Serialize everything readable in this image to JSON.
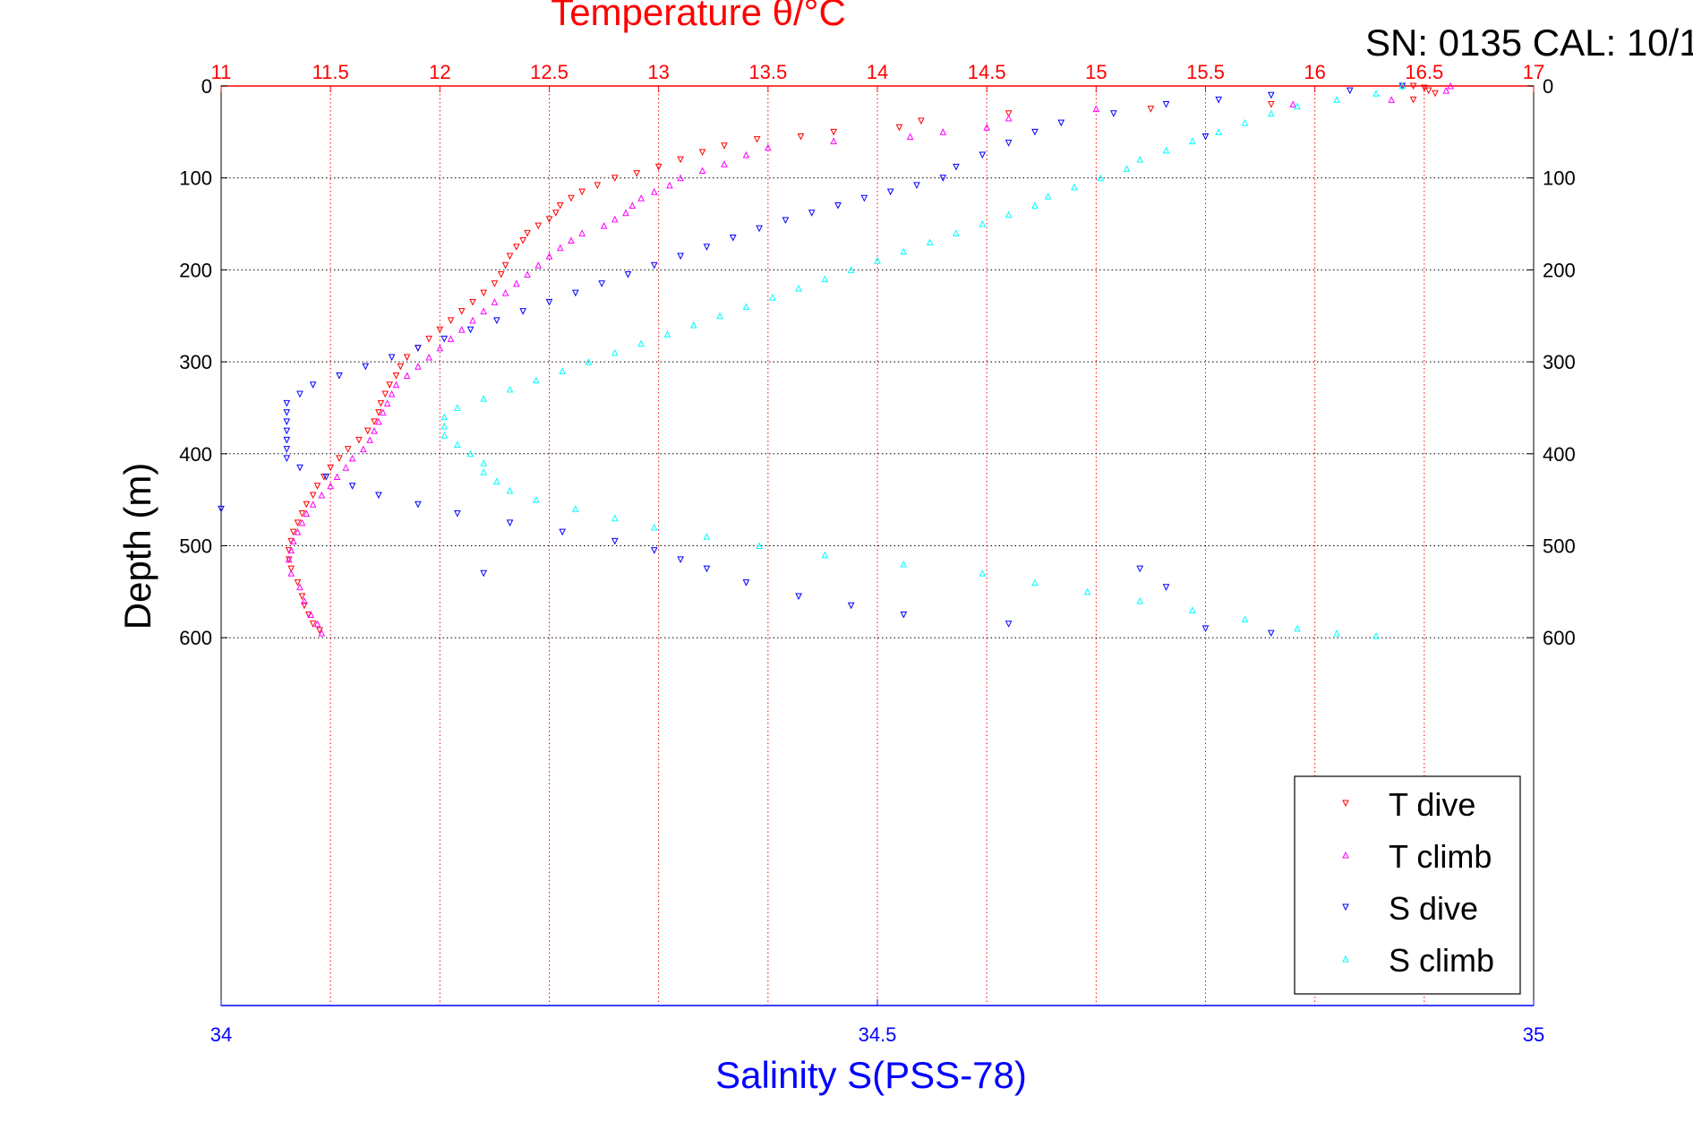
{
  "header": {
    "serial_text": "SN: 0135  CAL: 10/1"
  },
  "chart_data": {
    "type": "scatter",
    "title": "Temperature θ/°C",
    "xlabel": "Salinity S(PSS-78)",
    "ylabel": "Depth (m)",
    "top_axis": {
      "label": "Temperature θ/°C",
      "range": [
        11,
        17
      ],
      "ticks": [
        11,
        11.5,
        12,
        12.5,
        13,
        13.5,
        14,
        14.5,
        15,
        15.5,
        16,
        16.5,
        17
      ],
      "tick_labels": [
        "11",
        "11.5",
        "12",
        "12.5",
        "13",
        "13.5",
        "14",
        "14.5",
        "15",
        "15.5",
        "16",
        "16.5",
        "17"
      ],
      "color": "#ff0000"
    },
    "bottom_axis": {
      "label": "Salinity S(PSS-78)",
      "range": [
        34,
        35
      ],
      "ticks": [
        34,
        34.5,
        35
      ],
      "tick_labels": [
        "34",
        "34.5",
        "35"
      ],
      "color": "#0000ff"
    },
    "y_axis": {
      "label": "Depth (m)",
      "range": [
        0,
        1000
      ],
      "reversed": true,
      "ticks": [
        0,
        100,
        200,
        300,
        400,
        500,
        600
      ],
      "tick_labels": [
        "0",
        "100",
        "200",
        "300",
        "400",
        "500",
        "600"
      ]
    },
    "grid": true,
    "legend_position": "bottom-right",
    "series": [
      {
        "name": "T dive",
        "axis": "temperature",
        "marker": "triangle-down",
        "color": "#ff0000",
        "points": [
          [
            16.45,
            0
          ],
          [
            16.5,
            2
          ],
          [
            16.52,
            5
          ],
          [
            16.55,
            8
          ],
          [
            16.45,
            15
          ],
          [
            15.8,
            20
          ],
          [
            15.25,
            25
          ],
          [
            14.6,
            30
          ],
          [
            14.2,
            38
          ],
          [
            14.1,
            45
          ],
          [
            13.8,
            50
          ],
          [
            13.65,
            55
          ],
          [
            13.45,
            58
          ],
          [
            13.3,
            65
          ],
          [
            13.2,
            72
          ],
          [
            13.1,
            80
          ],
          [
            13.0,
            88
          ],
          [
            12.9,
            95
          ],
          [
            12.8,
            100
          ],
          [
            12.72,
            108
          ],
          [
            12.65,
            115
          ],
          [
            12.6,
            122
          ],
          [
            12.55,
            130
          ],
          [
            12.53,
            138
          ],
          [
            12.5,
            145
          ],
          [
            12.45,
            152
          ],
          [
            12.4,
            160
          ],
          [
            12.38,
            168
          ],
          [
            12.35,
            175
          ],
          [
            12.32,
            185
          ],
          [
            12.3,
            195
          ],
          [
            12.28,
            205
          ],
          [
            12.25,
            215
          ],
          [
            12.2,
            225
          ],
          [
            12.15,
            235
          ],
          [
            12.1,
            245
          ],
          [
            12.05,
            255
          ],
          [
            12.0,
            265
          ],
          [
            11.95,
            275
          ],
          [
            11.9,
            285
          ],
          [
            11.85,
            295
          ],
          [
            11.82,
            305
          ],
          [
            11.8,
            315
          ],
          [
            11.77,
            325
          ],
          [
            11.75,
            335
          ],
          [
            11.73,
            345
          ],
          [
            11.72,
            355
          ],
          [
            11.7,
            365
          ],
          [
            11.67,
            375
          ],
          [
            11.63,
            385
          ],
          [
            11.58,
            395
          ],
          [
            11.54,
            405
          ],
          [
            11.5,
            415
          ],
          [
            11.47,
            425
          ],
          [
            11.44,
            435
          ],
          [
            11.42,
            445
          ],
          [
            11.39,
            455
          ],
          [
            11.37,
            465
          ],
          [
            11.35,
            475
          ],
          [
            11.33,
            485
          ],
          [
            11.32,
            495
          ],
          [
            11.31,
            505
          ],
          [
            11.31,
            515
          ],
          [
            11.32,
            525
          ],
          [
            11.35,
            540
          ],
          [
            11.37,
            555
          ],
          [
            11.38,
            565
          ],
          [
            11.4,
            575
          ],
          [
            11.42,
            585
          ],
          [
            11.45,
            592
          ]
        ]
      },
      {
        "name": "T climb",
        "axis": "temperature",
        "marker": "triangle-up",
        "color": "#ff00ff",
        "points": [
          [
            16.62,
            0
          ],
          [
            16.6,
            5
          ],
          [
            16.35,
            15
          ],
          [
            15.9,
            20
          ],
          [
            15.0,
            25
          ],
          [
            14.6,
            35
          ],
          [
            14.5,
            45
          ],
          [
            14.3,
            50
          ],
          [
            14.15,
            55
          ],
          [
            13.8,
            60
          ],
          [
            13.5,
            67
          ],
          [
            13.4,
            75
          ],
          [
            13.3,
            85
          ],
          [
            13.2,
            92
          ],
          [
            13.1,
            100
          ],
          [
            13.05,
            108
          ],
          [
            12.98,
            115
          ],
          [
            12.92,
            122
          ],
          [
            12.88,
            130
          ],
          [
            12.85,
            138
          ],
          [
            12.8,
            145
          ],
          [
            12.75,
            152
          ],
          [
            12.65,
            160
          ],
          [
            12.6,
            168
          ],
          [
            12.55,
            176
          ],
          [
            12.5,
            185
          ],
          [
            12.45,
            195
          ],
          [
            12.4,
            205
          ],
          [
            12.35,
            215
          ],
          [
            12.3,
            225
          ],
          [
            12.25,
            235
          ],
          [
            12.2,
            245
          ],
          [
            12.15,
            255
          ],
          [
            12.1,
            265
          ],
          [
            12.05,
            275
          ],
          [
            12.0,
            285
          ],
          [
            11.95,
            295
          ],
          [
            11.9,
            305
          ],
          [
            11.85,
            315
          ],
          [
            11.8,
            325
          ],
          [
            11.78,
            335
          ],
          [
            11.76,
            345
          ],
          [
            11.74,
            355
          ],
          [
            11.72,
            365
          ],
          [
            11.7,
            375
          ],
          [
            11.68,
            385
          ],
          [
            11.65,
            395
          ],
          [
            11.6,
            405
          ],
          [
            11.57,
            415
          ],
          [
            11.53,
            425
          ],
          [
            11.5,
            435
          ],
          [
            11.46,
            445
          ],
          [
            11.42,
            455
          ],
          [
            11.39,
            465
          ],
          [
            11.37,
            475
          ],
          [
            11.35,
            485
          ],
          [
            11.33,
            495
          ],
          [
            11.32,
            505
          ],
          [
            11.31,
            515
          ],
          [
            11.32,
            530
          ],
          [
            11.36,
            545
          ],
          [
            11.38,
            560
          ],
          [
            11.41,
            575
          ],
          [
            11.44,
            585
          ],
          [
            11.46,
            595
          ]
        ]
      },
      {
        "name": "S dive",
        "axis": "salinity",
        "marker": "triangle-down",
        "color": "#0000ff",
        "points": [
          [
            34.9,
            0
          ],
          [
            34.86,
            5
          ],
          [
            34.8,
            10
          ],
          [
            34.76,
            15
          ],
          [
            34.72,
            20
          ],
          [
            34.68,
            30
          ],
          [
            34.64,
            40
          ],
          [
            34.62,
            50
          ],
          [
            34.6,
            62
          ],
          [
            34.58,
            75
          ],
          [
            34.56,
            88
          ],
          [
            34.55,
            100
          ],
          [
            34.53,
            108
          ],
          [
            34.51,
            115
          ],
          [
            34.49,
            122
          ],
          [
            34.47,
            130
          ],
          [
            34.45,
            138
          ],
          [
            34.43,
            146
          ],
          [
            34.41,
            155
          ],
          [
            34.39,
            165
          ],
          [
            34.37,
            175
          ],
          [
            34.35,
            185
          ],
          [
            34.33,
            195
          ],
          [
            34.31,
            205
          ],
          [
            34.29,
            215
          ],
          [
            34.27,
            225
          ],
          [
            34.25,
            235
          ],
          [
            34.23,
            245
          ],
          [
            34.21,
            255
          ],
          [
            34.19,
            265
          ],
          [
            34.17,
            275
          ],
          [
            34.15,
            285
          ],
          [
            34.13,
            295
          ],
          [
            34.11,
            305
          ],
          [
            34.09,
            315
          ],
          [
            34.07,
            325
          ],
          [
            34.06,
            335
          ],
          [
            34.05,
            345
          ],
          [
            34.05,
            355
          ],
          [
            34.05,
            365
          ],
          [
            34.05,
            375
          ],
          [
            34.05,
            385
          ],
          [
            34.05,
            395
          ],
          [
            34.05,
            405
          ],
          [
            34.06,
            415
          ],
          [
            34.08,
            425
          ],
          [
            34.1,
            435
          ],
          [
            34.12,
            445
          ],
          [
            34.15,
            455
          ],
          [
            34.18,
            465
          ],
          [
            34.22,
            475
          ],
          [
            34.26,
            485
          ],
          [
            34.3,
            495
          ],
          [
            34.33,
            505
          ],
          [
            34.35,
            515
          ],
          [
            34.37,
            525
          ],
          [
            34.4,
            540
          ],
          [
            34.44,
            555
          ],
          [
            34.48,
            565
          ],
          [
            34.52,
            575
          ],
          [
            34.6,
            585
          ],
          [
            34.75,
            590
          ],
          [
            34.8,
            595
          ],
          [
            34.0,
            460
          ],
          [
            34.2,
            530
          ],
          [
            34.7,
            525
          ],
          [
            34.72,
            545
          ],
          [
            34.75,
            55
          ]
        ]
      },
      {
        "name": "S climb",
        "axis": "salinity",
        "marker": "triangle-up",
        "color": "#00ffff",
        "points": [
          [
            34.9,
            0
          ],
          [
            34.88,
            8
          ],
          [
            34.85,
            15
          ],
          [
            34.82,
            22
          ],
          [
            34.8,
            30
          ],
          [
            34.78,
            40
          ],
          [
            34.76,
            50
          ],
          [
            34.74,
            60
          ],
          [
            34.72,
            70
          ],
          [
            34.7,
            80
          ],
          [
            34.69,
            90
          ],
          [
            34.67,
            100
          ],
          [
            34.65,
            110
          ],
          [
            34.63,
            120
          ],
          [
            34.62,
            130
          ],
          [
            34.6,
            140
          ],
          [
            34.58,
            150
          ],
          [
            34.56,
            160
          ],
          [
            34.54,
            170
          ],
          [
            34.52,
            180
          ],
          [
            34.5,
            190
          ],
          [
            34.48,
            200
          ],
          [
            34.46,
            210
          ],
          [
            34.44,
            220
          ],
          [
            34.42,
            230
          ],
          [
            34.4,
            240
          ],
          [
            34.38,
            250
          ],
          [
            34.36,
            260
          ],
          [
            34.34,
            270
          ],
          [
            34.32,
            280
          ],
          [
            34.3,
            290
          ],
          [
            34.28,
            300
          ],
          [
            34.26,
            310
          ],
          [
            34.24,
            320
          ],
          [
            34.22,
            330
          ],
          [
            34.2,
            340
          ],
          [
            34.18,
            350
          ],
          [
            34.17,
            360
          ],
          [
            34.17,
            370
          ],
          [
            34.17,
            380
          ],
          [
            34.18,
            390
          ],
          [
            34.19,
            400
          ],
          [
            34.2,
            410
          ],
          [
            34.2,
            420
          ],
          [
            34.21,
            430
          ],
          [
            34.22,
            440
          ],
          [
            34.24,
            450
          ],
          [
            34.27,
            460
          ],
          [
            34.3,
            470
          ],
          [
            34.33,
            480
          ],
          [
            34.37,
            490
          ],
          [
            34.41,
            500
          ],
          [
            34.46,
            510
          ],
          [
            34.52,
            520
          ],
          [
            34.58,
            530
          ],
          [
            34.62,
            540
          ],
          [
            34.66,
            550
          ],
          [
            34.7,
            560
          ],
          [
            34.74,
            570
          ],
          [
            34.78,
            580
          ],
          [
            34.82,
            590
          ],
          [
            34.85,
            595
          ],
          [
            34.88,
            598
          ]
        ]
      }
    ]
  }
}
